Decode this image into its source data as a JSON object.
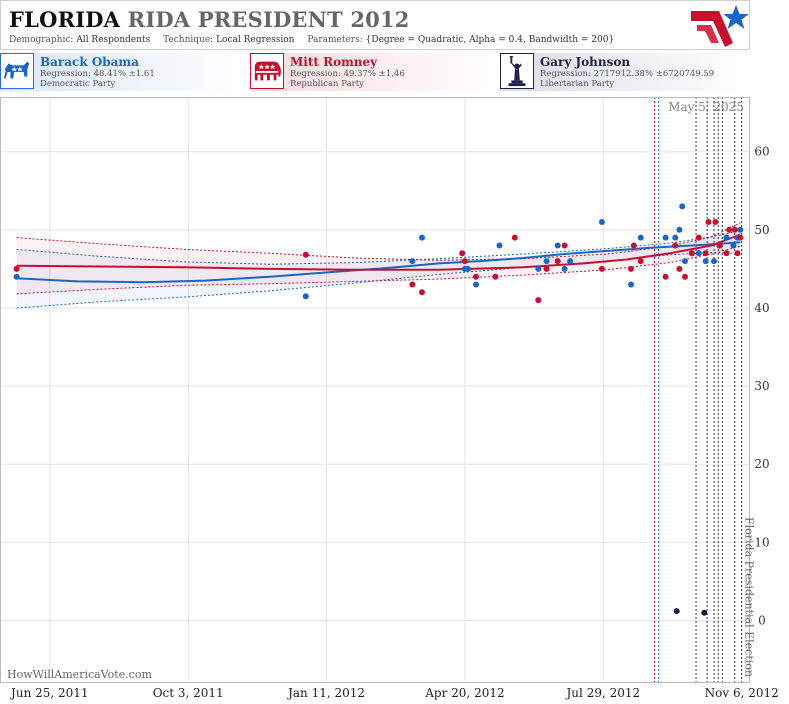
{
  "header": {
    "title_part1": "FLORIDA",
    "title_part2": "RIDA PRESIDENT 2012",
    "demographic_label": "Demographic:",
    "demographic_value": "All Respondents",
    "technique_label": "Technique:",
    "technique_value": "Local Regression",
    "parameters_label": "Parameters:",
    "parameters_value": "{Degree = Quadratic, Alpha = 0.4, Bandwidth = 200}",
    "logo_icon": "star-flag-logo-icon"
  },
  "candidates": [
    {
      "name": "Barack Obama",
      "regression": "Regression: 48.41% ±1.61",
      "party": "Democratic Party",
      "icon": "donkey-icon",
      "color": "#1a66c8"
    },
    {
      "name": "Mitt Romney",
      "regression": "Regression: 49.37% ±1.46",
      "party": "Republican Party",
      "icon": "elephant-icon",
      "color": "#c8102e"
    },
    {
      "name": "Gary Johnson",
      "regression": "Regression: 2717912.38% ±6720749.59",
      "party": "Libertarian Party",
      "icon": "statue-of-liberty-icon",
      "color": "#222244"
    }
  ],
  "chart_data": {
    "type": "scatter",
    "date_label": "May 5, 2025",
    "watermark": "HowWillAmericaVote.com",
    "event_label": "Florida Presidential Election",
    "event_date": "2012-11-06",
    "x_ticks": [
      "2011-06-25",
      "2011-10-03",
      "2012-01-11",
      "2012-04-20",
      "2012-07-29",
      "2012-11-06"
    ],
    "x_tick_labels": [
      "Jun 25, 2011",
      "Oct 3, 2011",
      "Jan 11, 2012",
      "Apr 20, 2012",
      "Jul 29, 2012",
      "Nov 6, 2012"
    ],
    "xlim": [
      "2011-05-20",
      "2012-11-12"
    ],
    "ylim": [
      -8,
      67
    ],
    "y_ticks": [
      0,
      10,
      20,
      30,
      40,
      50,
      60
    ],
    "grid": true,
    "vertical_markers": [
      {
        "date": "2012-09-04",
        "color": "#c8102e"
      },
      {
        "date": "2012-09-07",
        "color": "#1a66c8"
      },
      {
        "date": "2012-10-04",
        "color": "#333333"
      },
      {
        "date": "2012-10-12",
        "color": "#333333"
      },
      {
        "date": "2012-10-17",
        "color": "#333333"
      },
      {
        "date": "2012-10-20",
        "color": "#333333"
      },
      {
        "date": "2012-10-23",
        "color": "#333333"
      },
      {
        "date": "2012-11-01",
        "color": "#333333"
      },
      {
        "date": "2012-11-06",
        "color": "#333333"
      }
    ],
    "series": [
      {
        "name": "Barack Obama",
        "color": "#1a66c8",
        "points": [
          [
            "2011-06-01",
            44
          ],
          [
            "2011-12-27",
            41.5
          ],
          [
            "2012-03-13",
            46
          ],
          [
            "2012-03-20",
            49
          ],
          [
            "2012-04-20",
            45
          ],
          [
            "2012-04-22",
            45
          ],
          [
            "2012-04-28",
            43
          ],
          [
            "2012-05-15",
            48
          ],
          [
            "2012-06-12",
            45
          ],
          [
            "2012-06-18",
            46
          ],
          [
            "2012-06-26",
            48
          ],
          [
            "2012-07-01",
            45
          ],
          [
            "2012-07-05",
            46
          ],
          [
            "2012-07-28",
            51
          ],
          [
            "2012-08-18",
            43
          ],
          [
            "2012-08-25",
            49
          ],
          [
            "2012-09-12",
            49
          ],
          [
            "2012-09-19",
            49
          ],
          [
            "2012-09-22",
            50
          ],
          [
            "2012-09-24",
            53
          ],
          [
            "2012-09-26",
            46
          ],
          [
            "2012-10-01",
            47
          ],
          [
            "2012-10-06",
            47
          ],
          [
            "2012-10-11",
            46
          ],
          [
            "2012-10-17",
            46
          ],
          [
            "2012-10-21",
            48
          ],
          [
            "2012-10-26",
            49
          ],
          [
            "2012-10-31",
            48
          ],
          [
            "2012-11-03",
            49
          ],
          [
            "2012-11-05",
            50
          ]
        ],
        "trend": [
          [
            "2011-06-01",
            43.8
          ],
          [
            "2011-07-15",
            43.4
          ],
          [
            "2011-09-01",
            43.3
          ],
          [
            "2011-10-15",
            43.5
          ],
          [
            "2011-12-01",
            44
          ],
          [
            "2012-01-15",
            44.6
          ],
          [
            "2012-03-01",
            45.2
          ],
          [
            "2012-04-01",
            45.7
          ],
          [
            "2012-05-01",
            46
          ],
          [
            "2012-06-01",
            46.4
          ],
          [
            "2012-07-01",
            46.9
          ],
          [
            "2012-08-01",
            47.3
          ],
          [
            "2012-09-01",
            47.7
          ],
          [
            "2012-10-01",
            48
          ],
          [
            "2012-10-20",
            48.2
          ],
          [
            "2012-11-05",
            48.4
          ]
        ],
        "band_upper": [
          [
            "2011-06-01",
            47.5
          ],
          [
            "2011-08-01",
            46.6
          ],
          [
            "2011-10-01",
            45.9
          ],
          [
            "2011-12-01",
            45.6
          ],
          [
            "2012-02-01",
            45.8
          ],
          [
            "2012-04-01",
            46.3
          ],
          [
            "2012-06-01",
            46.9
          ],
          [
            "2012-08-01",
            47.6
          ],
          [
            "2012-09-15",
            48.3
          ],
          [
            "2012-10-15",
            49.1
          ],
          [
            "2012-11-05",
            49.9
          ]
        ],
        "band_lower": [
          [
            "2011-06-01",
            40
          ],
          [
            "2011-08-01",
            40.8
          ],
          [
            "2011-10-01",
            41.4
          ],
          [
            "2011-12-01",
            42.2
          ],
          [
            "2012-02-01",
            43.2
          ],
          [
            "2012-04-01",
            44.3
          ],
          [
            "2012-06-01",
            45.2
          ],
          [
            "2012-08-01",
            46
          ],
          [
            "2012-09-15",
            46.8
          ],
          [
            "2012-10-15",
            47.1
          ],
          [
            "2012-11-05",
            47
          ]
        ]
      },
      {
        "name": "Mitt Romney",
        "color": "#c8102e",
        "points": [
          [
            "2011-06-01",
            45
          ],
          [
            "2011-12-27",
            46.8
          ],
          [
            "2012-03-13",
            43
          ],
          [
            "2012-03-20",
            42
          ],
          [
            "2012-04-18",
            47
          ],
          [
            "2012-04-20",
            46
          ],
          [
            "2012-04-28",
            44
          ],
          [
            "2012-05-12",
            44
          ],
          [
            "2012-05-26",
            49
          ],
          [
            "2012-06-12",
            41
          ],
          [
            "2012-06-18",
            45
          ],
          [
            "2012-06-26",
            46
          ],
          [
            "2012-07-01",
            48
          ],
          [
            "2012-07-28",
            45
          ],
          [
            "2012-08-18",
            45
          ],
          [
            "2012-08-20",
            48
          ],
          [
            "2012-08-25",
            46
          ],
          [
            "2012-09-12",
            44
          ],
          [
            "2012-09-19",
            48
          ],
          [
            "2012-09-22",
            45
          ],
          [
            "2012-09-26",
            44
          ],
          [
            "2012-10-01",
            47
          ],
          [
            "2012-10-06",
            49
          ],
          [
            "2012-10-11",
            47
          ],
          [
            "2012-10-13",
            51
          ],
          [
            "2012-10-18",
            51
          ],
          [
            "2012-10-21",
            48
          ],
          [
            "2012-10-26",
            47
          ],
          [
            "2012-10-28",
            50
          ],
          [
            "2012-11-01",
            50
          ],
          [
            "2012-11-03",
            47
          ],
          [
            "2012-11-05",
            49
          ]
        ],
        "trend": [
          [
            "2011-06-01",
            45.4
          ],
          [
            "2011-08-01",
            45.3
          ],
          [
            "2011-10-01",
            45.2
          ],
          [
            "2011-12-01",
            45
          ],
          [
            "2012-02-01",
            44.9
          ],
          [
            "2012-04-01",
            44.9
          ],
          [
            "2012-06-01",
            45.2
          ],
          [
            "2012-07-15",
            45.7
          ],
          [
            "2012-08-15",
            46.2
          ],
          [
            "2012-09-15",
            47
          ],
          [
            "2012-10-15",
            48
          ],
          [
            "2012-11-05",
            49.4
          ]
        ],
        "band_upper": [
          [
            "2011-06-01",
            49
          ],
          [
            "2011-08-01",
            48.2
          ],
          [
            "2011-10-01",
            47.5
          ],
          [
            "2011-12-01",
            47
          ],
          [
            "2012-02-01",
            46.4
          ],
          [
            "2012-04-01",
            46.1
          ],
          [
            "2012-06-01",
            46.3
          ],
          [
            "2012-08-01",
            46.9
          ],
          [
            "2012-09-15",
            47.9
          ],
          [
            "2012-10-15",
            49.1
          ],
          [
            "2012-11-05",
            50.9
          ]
        ],
        "band_lower": [
          [
            "2011-06-01",
            41.8
          ],
          [
            "2011-08-01",
            42.4
          ],
          [
            "2011-10-01",
            42.9
          ],
          [
            "2011-12-01",
            43.1
          ],
          [
            "2012-02-01",
            43.4
          ],
          [
            "2012-04-01",
            43.7
          ],
          [
            "2012-06-01",
            44.2
          ],
          [
            "2012-08-01",
            44.9
          ],
          [
            "2012-09-15",
            45.8
          ],
          [
            "2012-10-15",
            46.9
          ],
          [
            "2012-11-05",
            47.9
          ]
        ]
      },
      {
        "name": "Gary Johnson",
        "color": "#1a1a4a",
        "points": [
          [
            "2012-09-20",
            1.2
          ],
          [
            "2012-10-10",
            1
          ]
        ]
      }
    ]
  }
}
